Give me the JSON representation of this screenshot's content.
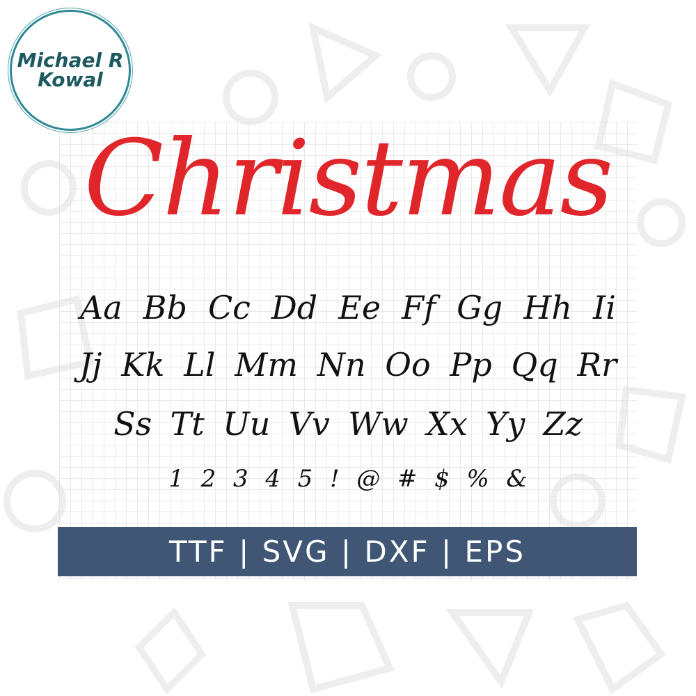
{
  "logo": {
    "line1": "Michael R",
    "line2": "Kowal"
  },
  "title": "Christmas",
  "rows": [
    [
      "Aa",
      "Bb",
      "Cc",
      "Dd",
      "Ee",
      "Ff",
      "Gg",
      "Hh",
      "Ii"
    ],
    [
      "Jj",
      "Kk",
      "Ll",
      "Mm",
      "Nn",
      "Oo",
      "Pp",
      "Qq",
      "Rr"
    ],
    [
      "Ss",
      "Tt",
      "Uu",
      "Vv",
      "Ww",
      "Xx",
      "Yy",
      "Zz"
    ],
    [
      "1",
      "2",
      "3",
      "4",
      "5",
      "!",
      "@",
      "#",
      "$",
      "%",
      "&"
    ]
  ],
  "banner": "TTF | SVG | DXF | EPS",
  "colors": {
    "title": "#e0262a",
    "banner": "#3f5775",
    "logo": "#2f8a96"
  }
}
